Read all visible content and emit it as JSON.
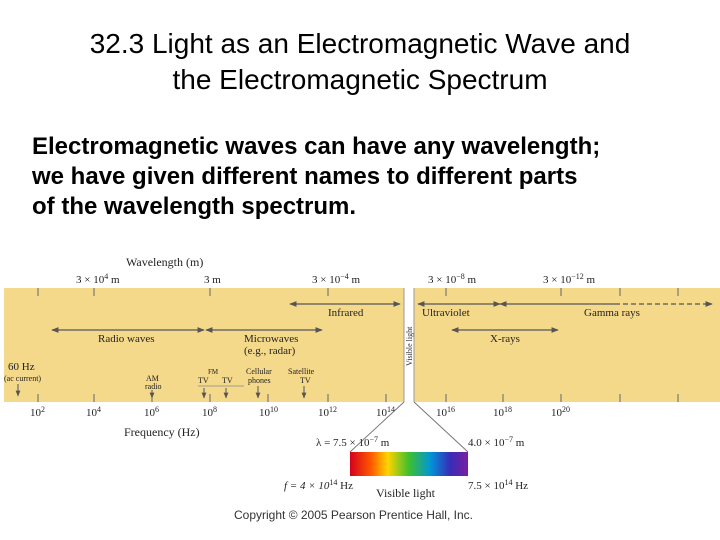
{
  "slide": {
    "title_line1": "32.3 Light as an Electromagnetic Wave and",
    "title_line2": "the Electromagnetic Spectrum",
    "body_line1": "Electromagnetic waves can have any wavelength;",
    "body_line2": "we have given different names to different parts",
    "body_line3": "of the wavelength spectrum."
  },
  "diagram": {
    "wavelength_label": "Wavelength (m)",
    "wavelength_ticks": [
      {
        "base": "3 × 10",
        "exp": "4",
        "unit": " m"
      },
      {
        "base": "3 m",
        "exp": "",
        "unit": ""
      },
      {
        "base": "3 × 10",
        "exp": "−4",
        "unit": " m"
      },
      {
        "base": "3 × 10",
        "exp": "−8",
        "unit": " m"
      },
      {
        "base": "3 × 10",
        "exp": "−12",
        "unit": " m"
      }
    ],
    "regions": {
      "infrared": "Infrared",
      "ultraviolet": "Ultraviolet",
      "gamma": "Gamma rays",
      "radio": "Radio waves",
      "microwaves_1": "Microwaves",
      "microwaves_2": "(e.g., radar)",
      "xrays": "X-rays",
      "visible_vertical": "Visible light"
    },
    "sources": {
      "hz60_1": "60 Hz",
      "hz60_2": "(ac current)",
      "am_1": "AM",
      "am_2": "radio",
      "fm": "FM",
      "tv1": "TV",
      "tv2": "TV",
      "cell_1": "Cellular",
      "cell_2": "phones",
      "sat_1": "Satellite",
      "sat_2": "TV"
    },
    "frequency_ticks": [
      {
        "base": "10",
        "exp": "2"
      },
      {
        "base": "10",
        "exp": "4"
      },
      {
        "base": "10",
        "exp": "6"
      },
      {
        "base": "10",
        "exp": "8"
      },
      {
        "base": "10",
        "exp": "10"
      },
      {
        "base": "10",
        "exp": "12"
      },
      {
        "base": "10",
        "exp": "14"
      },
      {
        "base": "10",
        "exp": "16"
      },
      {
        "base": "10",
        "exp": "18"
      },
      {
        "base": "10",
        "exp": "20"
      }
    ],
    "frequency_label": "Frequency (Hz)",
    "visible": {
      "lambda_left_prefix": "λ = 7.5 × 10",
      "lambda_left_exp": "−7",
      "lambda_left_unit": " m",
      "lambda_right_base": "4.0 × 10",
      "lambda_right_exp": "−7",
      "lambda_right_unit": " m",
      "f_left_prefix": "f = 4 × 10",
      "f_left_exp": "14",
      "f_left_unit": " Hz",
      "f_right_base": "7.5 × 10",
      "f_right_exp": "14",
      "f_right_unit": " Hz",
      "label": "Visible light"
    },
    "copyright": "Copyright © 2005 Pearson Prentice Hall, Inc."
  },
  "colors": {
    "band": "#f4d98b",
    "gap": "#ffffff",
    "line": "#555555"
  }
}
